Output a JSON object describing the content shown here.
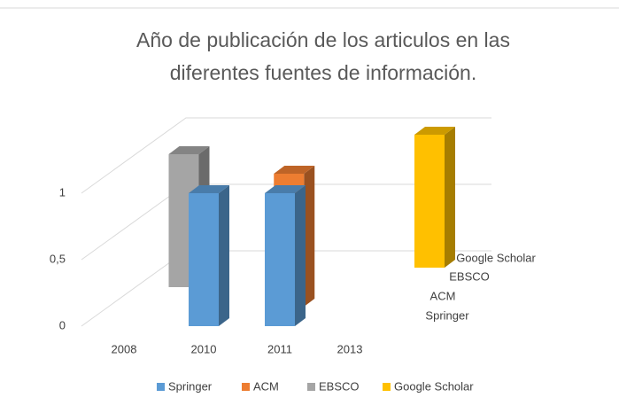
{
  "chart_data": {
    "type": "bar3d",
    "title": [
      "Año de publicación de los articulos en las",
      "diferentes fuentes de información."
    ],
    "categories": [
      "2008",
      "2010",
      "2011",
      "2013"
    ],
    "series": [
      {
        "name": "Springer",
        "color": "#5b9bd5",
        "values": [
          null,
          1,
          1,
          null
        ]
      },
      {
        "name": "ACM",
        "color": "#ed7d31",
        "values": [
          null,
          null,
          1,
          null
        ]
      },
      {
        "name": "EBSCO",
        "color": "#a5a5a5",
        "values": [
          null,
          1,
          null,
          null
        ]
      },
      {
        "name": "Google Scholar",
        "color": "#ffc000",
        "values": [
          null,
          null,
          null,
          1
        ]
      }
    ],
    "ylim": [
      0,
      1.2
    ],
    "yticks": [
      0,
      {
        "value": 0.5,
        "label": "0,5"
      },
      1
    ],
    "grid": true,
    "legend": "bottom"
  }
}
